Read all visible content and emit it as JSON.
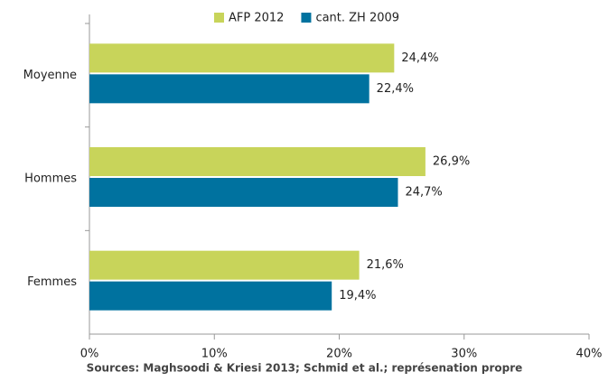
{
  "chart_data": {
    "type": "hbar",
    "categories": [
      "Moyenne",
      "Hommes",
      "Femmes"
    ],
    "series": [
      {
        "name": "AFP 2012",
        "color": "#c8d45a",
        "values": [
          24.4,
          26.9,
          21.6
        ],
        "value_labels": [
          "24,4%",
          "26,9%",
          "21,6%"
        ]
      },
      {
        "name": "cant. ZH 2009",
        "color": "#00729f",
        "values": [
          22.4,
          24.7,
          19.4
        ],
        "value_labels": [
          "22,4%",
          "24,7%",
          "19,4%"
        ]
      }
    ],
    "xlim": [
      0,
      40
    ],
    "xticks": [
      {
        "value": 0,
        "label": "0%"
      },
      {
        "value": 10,
        "label": "10%"
      },
      {
        "value": 20,
        "label": "20%"
      },
      {
        "value": 30,
        "label": "30%"
      },
      {
        "value": 40,
        "label": "40%"
      }
    ],
    "legend": "top",
    "caption": "Sources: Maghsoodi & Kriesi 2013; Schmid et al.; représenation propre"
  }
}
